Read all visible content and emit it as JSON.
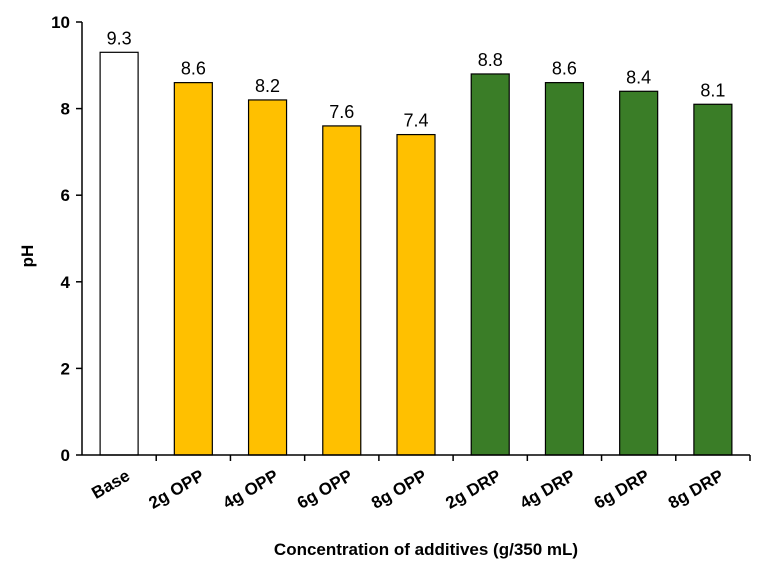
{
  "chart_data": {
    "type": "bar",
    "title": "",
    "xlabel": "Concentration of additives (g/350 mL)",
    "ylabel": "pH",
    "ylim": [
      0,
      10
    ],
    "yticks": [
      0,
      2,
      4,
      6,
      8,
      10
    ],
    "grid": false,
    "legend": "none",
    "categories": [
      "Base",
      "2g OPP",
      "4g OPP",
      "6g OPP",
      "8g OPP",
      "2g DRP",
      "4g DRP",
      "6g DRP",
      "8g DRP"
    ],
    "values": [
      9.3,
      8.6,
      8.2,
      7.6,
      7.4,
      8.8,
      8.6,
      8.4,
      8.1
    ],
    "value_labels": [
      "9.3",
      "8.6",
      "8.2",
      "7.6",
      "7.4",
      "8.8",
      "8.6",
      "8.4",
      "8.1"
    ],
    "bar_colors": [
      "#ffffff",
      "#ffc000",
      "#ffc000",
      "#ffc000",
      "#ffc000",
      "#3a7d27",
      "#3a7d27",
      "#3a7d27",
      "#3a7d27"
    ],
    "bar_outline": "#000000"
  }
}
